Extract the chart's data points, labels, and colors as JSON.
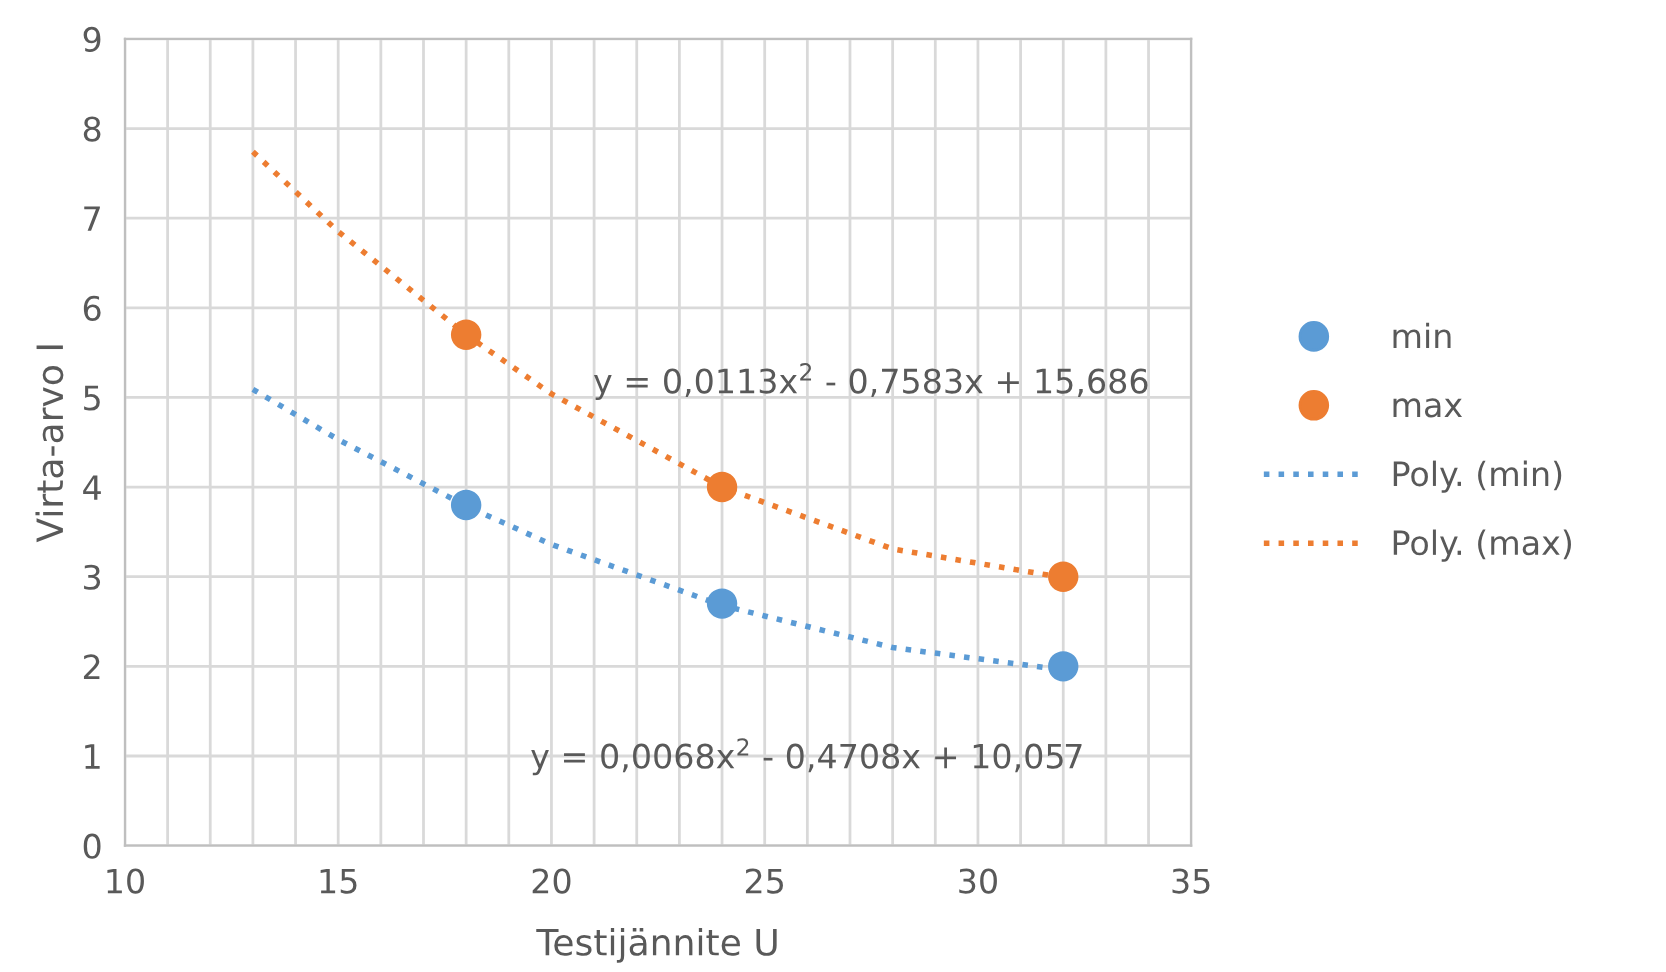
{
  "chart_data": {
    "type": "scatter",
    "xlabel": "Testijännite U",
    "ylabel": "Virta-arvo I",
    "xlim": [
      10,
      35
    ],
    "ylim": [
      0,
      9
    ],
    "xticks": [
      10,
      {
        "value": 11,
        "label": null
      },
      {
        "value": 12,
        "label": null
      },
      {
        "value": 13,
        "label": null
      },
      {
        "value": 14,
        "label": null
      },
      15,
      {
        "value": 16,
        "label": null
      },
      {
        "value": 17,
        "label": null
      },
      {
        "value": 18,
        "label": null
      },
      {
        "value": 19,
        "label": null
      },
      20,
      {
        "value": 21,
        "label": null
      },
      {
        "value": 22,
        "label": null
      },
      {
        "value": 23,
        "label": null
      },
      {
        "value": 24,
        "label": null
      },
      25,
      {
        "value": 26,
        "label": null
      },
      {
        "value": 27,
        "label": null
      },
      {
        "value": 28,
        "label": null
      },
      {
        "value": 29,
        "label": null
      },
      30,
      {
        "value": 31,
        "label": null
      },
      {
        "value": 32,
        "label": null
      },
      {
        "value": 33,
        "label": null
      },
      {
        "value": 34,
        "label": null
      },
      35
    ],
    "yticks": [
      0,
      1,
      2,
      3,
      4,
      5,
      6,
      7,
      8,
      9
    ],
    "grid": true,
    "legend": "right",
    "marker": "circle",
    "series": [
      {
        "name": "min",
        "color": "#5b9bd5",
        "x": [
          18,
          24,
          32
        ],
        "values": [
          3.8,
          2.7,
          2.0
        ]
      },
      {
        "name": "max",
        "color": "#ed7d31",
        "x": [
          18,
          24,
          32
        ],
        "values": [
          5.7,
          4.0,
          3.0
        ]
      },
      {
        "name": "Poly. (min)",
        "type": "line",
        "line_style": "dotted",
        "marker": "none",
        "color": "#5b9bd5",
        "x": [
          13,
          15,
          18,
          20,
          24,
          28,
          32
        ],
        "values": [
          5.09,
          4.53,
          3.79,
          3.36,
          2.68,
          2.21,
          1.96
        ]
      },
      {
        "name": "Poly. (max)",
        "type": "line",
        "line_style": "dotted",
        "marker": "none",
        "color": "#ed7d31",
        "x": [
          13,
          15,
          18,
          20,
          24,
          28,
          32
        ],
        "values": [
          7.74,
          6.85,
          5.7,
          5.04,
          4.0,
          3.31,
          2.99
        ]
      }
    ],
    "annotations": [
      "y = 0,0113x$^{2}$ - 0,7583x + 15,686",
      "y = 0,0068x$^{2}$ - 0,4708x + 10,057"
    ]
  }
}
